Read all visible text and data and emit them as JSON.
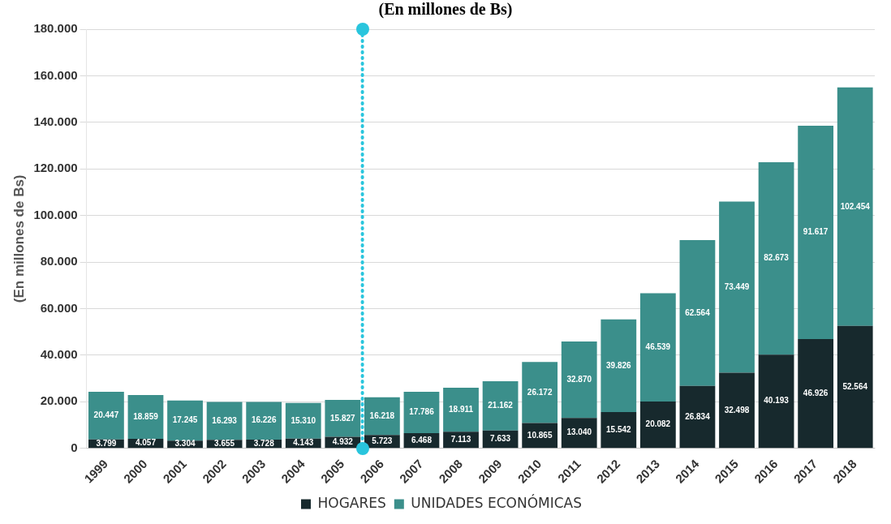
{
  "chart_data": {
    "type": "bar",
    "title": "(En millones de Bs)",
    "ylabel": "(En millones de Bs)",
    "stacked": true,
    "grid": "y",
    "legend": "bottom",
    "categories": [
      "1999",
      "2000",
      "2001",
      "2002",
      "2003",
      "2004",
      "2005",
      "2006",
      "2007",
      "2008",
      "2009",
      "2010",
      "2011",
      "2012",
      "2013",
      "2014",
      "2015",
      "2016",
      "2017",
      "2018"
    ],
    "series": [
      {
        "name": "HOGARES",
        "color": "#17292d",
        "values": [
          3799,
          4057,
          3304,
          3655,
          3728,
          4143,
          4932,
          5723,
          6468,
          7113,
          7633,
          10865,
          13040,
          15542,
          20082,
          26834,
          32498,
          40193,
          46926,
          52564
        ],
        "value_labels": [
          "3.799",
          "4.057",
          "3.304",
          "3.655",
          "3.728",
          "4.143",
          "4.932",
          "5.723",
          "6.468",
          "7.113",
          "7.633",
          "10.865",
          "13.040",
          "15.542",
          "20.082",
          "26.834",
          "32.498",
          "40.193",
          "46.926",
          "52.564"
        ]
      },
      {
        "name": "UNIDADES ECONÓMICAS",
        "color": "#3b8f8b",
        "values": [
          20447,
          18859,
          17245,
          16293,
          16226,
          15310,
          15827,
          16218,
          17786,
          18911,
          21162,
          26172,
          32870,
          39826,
          46539,
          62564,
          73449,
          82673,
          91617,
          102454
        ],
        "value_labels": [
          "20.447",
          "18.859",
          "17.245",
          "16.293",
          "16.226",
          "15.310",
          "15.827",
          "16.218",
          "17.786",
          "18.911",
          "21.162",
          "26.172",
          "32.870",
          "39.826",
          "46.539",
          "62.564",
          "73.449",
          "82.673",
          "91.617",
          "102.454"
        ]
      }
    ],
    "ref_lines": [
      {
        "axis": "x",
        "value": "2006",
        "color": "#29c5dd",
        "line_style": "dotted"
      }
    ],
    "ylim": [
      0,
      180000
    ],
    "yticks": [
      {
        "value": 0,
        "label": "0"
      },
      {
        "value": 20000,
        "label": "20.000"
      },
      {
        "value": 40000,
        "label": "40.000"
      },
      {
        "value": 60000,
        "label": "60.000"
      },
      {
        "value": 80000,
        "label": "80.000"
      },
      {
        "value": 100000,
        "label": "100.000"
      },
      {
        "value": 120000,
        "label": "120.000"
      },
      {
        "value": 140000,
        "label": "140.000"
      },
      {
        "value": 160000,
        "label": "160.000"
      },
      {
        "value": 180000,
        "label": "180.000"
      }
    ]
  }
}
